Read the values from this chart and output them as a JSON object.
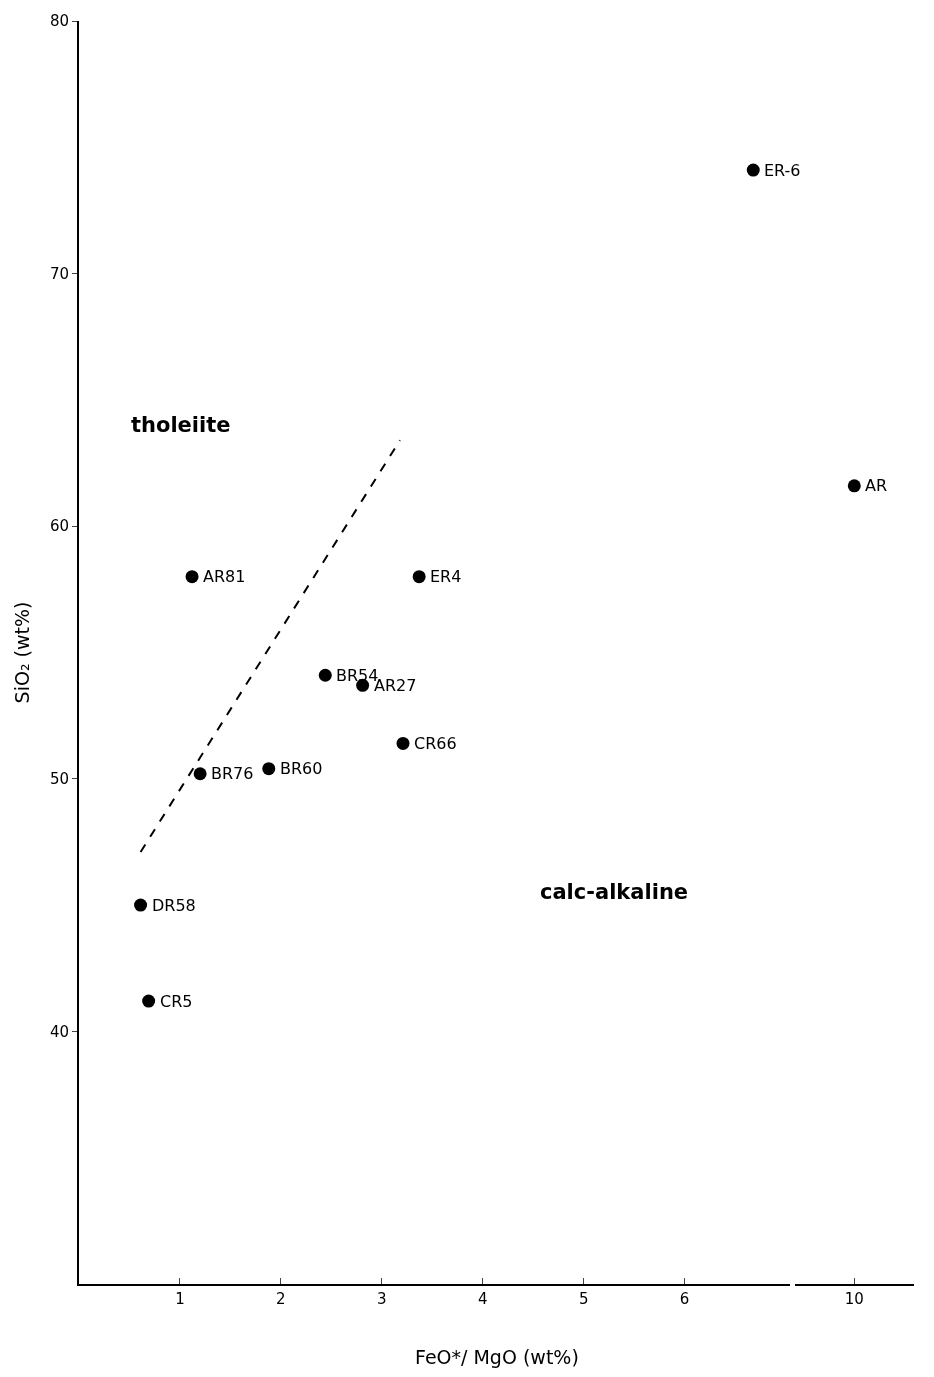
{
  "chart_data": [
    {
      "type": "scatter",
      "xlabel": "FeO*/ MgO (wt%)",
      "ylabel": "SiO₂ (wt%)",
      "xlim": [
        0,
        7.04
      ],
      "xticks": [
        1,
        2,
        3,
        4,
        5,
        6
      ],
      "ylim": [
        30,
        80
      ],
      "yticks": [
        40,
        50,
        60,
        70,
        80
      ],
      "series": [
        {
          "type": "scatter",
          "marker": "circle",
          "color": "#000000",
          "x": [
            6.68,
            1.12,
            3.37,
            2.44,
            2.81,
            3.21,
            1.88,
            1.2,
            0.61,
            0.69
          ],
          "values": [
            74.1,
            58.0,
            58.0,
            54.1,
            53.7,
            51.4,
            50.4,
            50.2,
            45.0,
            41.2
          ]
        },
        {
          "type": "line",
          "color": "#000000",
          "line_style": "dashed",
          "x": [
            0.61,
            3.18
          ],
          "values": [
            47.1,
            63.4
          ]
        }
      ],
      "annotations": [
        {
          "text": "ER-6",
          "x": 6.68,
          "y": 74.1
        },
        {
          "text": "AR81",
          "x": 1.12,
          "y": 58.0
        },
        {
          "text": "ER4",
          "x": 3.37,
          "y": 58.0
        },
        {
          "text": "BR54",
          "x": 2.44,
          "y": 54.1
        },
        {
          "text": "AR27",
          "x": 2.81,
          "y": 53.7
        },
        {
          "text": "CR66",
          "x": 3.21,
          "y": 51.4
        },
        {
          "text": "BR60",
          "x": 1.88,
          "y": 50.4
        },
        {
          "text": "BR76",
          "x": 1.2,
          "y": 50.2
        },
        {
          "text": "DR58",
          "x": 0.61,
          "y": 45.0
        },
        {
          "text": "CR5",
          "x": 0.69,
          "y": 41.2
        },
        "tholeiite",
        "calc-alkaline"
      ]
    },
    {
      "type": "scatter",
      "categories": [
        "10"
      ],
      "ylim": [
        30,
        80
      ],
      "tick_labels": "x",
      "series": [
        {
          "type": "scatter",
          "marker": "circle",
          "color": "#000000",
          "values": [
            61.6
          ]
        }
      ],
      "annotations": [
        {
          "text": "AR",
          "x": "10",
          "y": 61.6
        }
      ]
    }
  ]
}
